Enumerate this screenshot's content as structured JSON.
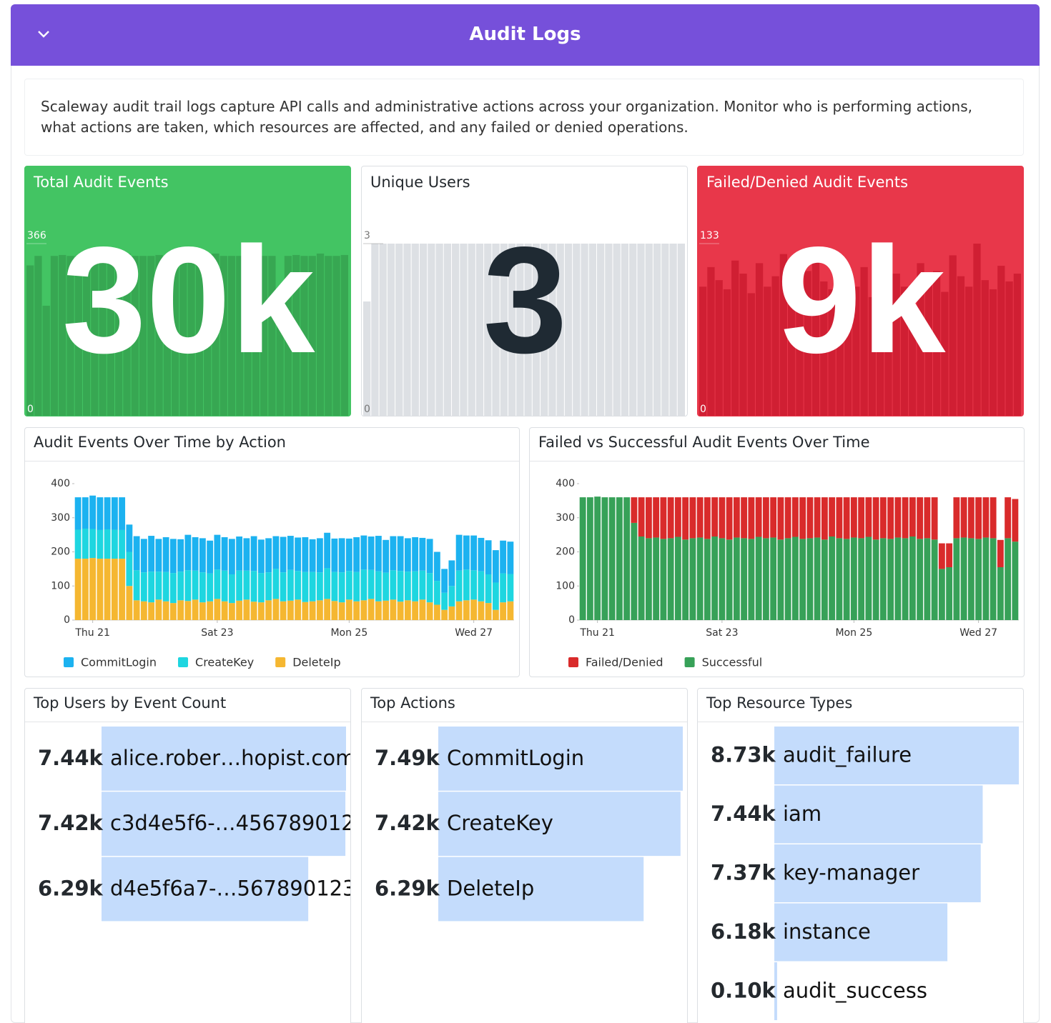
{
  "header": {
    "title": "Audit Logs"
  },
  "description": "Scaleway audit trail logs capture API calls and administrative actions across your organization. Monitor who is performing actions, what actions are taken, which resources are affected, and any failed or denied operations.",
  "stats": [
    {
      "title": "Total Audit Events",
      "value": "30k",
      "color": "#43c463",
      "bar_color": "#37a752",
      "text_color": "#ffffff",
      "sparkline": {
        "type": "bar",
        "ylim": [
          0,
          366
        ],
        "yticks": [
          0,
          366
        ],
        "values": [
          320,
          340,
          235,
          340,
          342,
          340,
          340,
          345,
          340,
          340,
          342,
          340,
          345,
          340,
          340,
          340,
          342,
          340,
          340,
          340,
          340,
          342,
          340,
          345,
          340,
          340,
          340,
          342,
          340,
          340,
          340,
          240,
          340,
          342,
          340,
          340,
          345,
          340,
          340,
          342
        ]
      }
    },
    {
      "title": "Unique Users",
      "value": "3",
      "color": "#ffffff",
      "bar_color": "#dde0e4",
      "text_color": "#1f2a33",
      "sparkline": {
        "type": "bar",
        "ylim": [
          0,
          3
        ],
        "yticks": [
          0,
          3
        ],
        "values": [
          2,
          3,
          3,
          3,
          3,
          3,
          3,
          3,
          3,
          3,
          3,
          3,
          3,
          3,
          3,
          3,
          3,
          3,
          3,
          3,
          3,
          3,
          3,
          3,
          3,
          3,
          3,
          3,
          3,
          3,
          3,
          3,
          3,
          3,
          3,
          3,
          3,
          3,
          3,
          3
        ]
      }
    },
    {
      "title": "Failed/Denied Audit Events",
      "value": "9k",
      "color": "#e8374a",
      "bar_color": "#d01f33",
      "text_color": "#ffffff",
      "sparkline": {
        "type": "bar",
        "ylim": [
          0,
          133
        ],
        "yticks": [
          0,
          133
        ],
        "values": [
          100,
          115,
          105,
          98,
          120,
          110,
          95,
          118,
          100,
          108,
          125,
          102,
          96,
          112,
          130,
          104,
          98,
          122,
          106,
          100,
          115,
          92,
          128,
          104,
          110,
          100,
          70,
          118,
          102,
          112,
          96,
          124,
          108,
          100,
          133,
          105,
          98,
          116,
          104,
          110
        ]
      }
    }
  ],
  "chart_data": [
    {
      "type": "stacked_bar",
      "title": "Audit Events Over Time by Action",
      "ylim": [
        0,
        400
      ],
      "yticks": [
        0,
        100,
        200,
        300,
        400
      ],
      "categories": [
        null,
        null,
        "Thu 21",
        null,
        null,
        null,
        null,
        null,
        null,
        null,
        null,
        null,
        null,
        null,
        null,
        null,
        null,
        null,
        null,
        "Sat 23",
        null,
        null,
        null,
        null,
        null,
        null,
        null,
        null,
        null,
        null,
        null,
        null,
        null,
        null,
        null,
        null,
        null,
        "Mon 25",
        null,
        null,
        null,
        null,
        null,
        null,
        null,
        null,
        null,
        null,
        null,
        null,
        null,
        null,
        null,
        null,
        "Wed 27",
        null,
        null,
        null,
        null,
        null
      ],
      "series": [
        {
          "name": "CommitLogin",
          "color": "#1cb2f0",
          "values": [
            95,
            92,
            98,
            96,
            94,
            95,
            96,
            80,
            100,
            98,
            105,
            96,
            102,
            100,
            95,
            104,
            98,
            100,
            96,
            102,
            98,
            104,
            100,
            95,
            102,
            98,
            100,
            96,
            104,
            100,
            98,
            102,
            96,
            100,
            104,
            98,
            100,
            95,
            102,
            100,
            98,
            104,
            96,
            100,
            102,
            98,
            100,
            96,
            100,
            85,
            70,
            75,
            105,
            100,
            102,
            98,
            100,
            95,
            96,
            95
          ]
        },
        {
          "name": "CreateKey",
          "color": "#1ed6e0",
          "values": [
            85,
            88,
            85,
            84,
            86,
            85,
            84,
            100,
            88,
            85,
            90,
            82,
            86,
            88,
            84,
            90,
            85,
            88,
            82,
            86,
            90,
            84,
            88,
            85,
            90,
            86,
            82,
            88,
            85,
            90,
            84,
            88,
            86,
            82,
            90,
            85,
            88,
            84,
            86,
            90,
            85,
            88,
            82,
            86,
            90,
            84,
            88,
            85,
            86,
            70,
            50,
            60,
            90,
            90,
            86,
            88,
            84,
            80,
            85,
            80
          ]
        },
        {
          "name": "DeleteIp",
          "color": "#f5b731",
          "values": [
            180,
            180,
            182,
            180,
            180,
            180,
            180,
            100,
            58,
            55,
            52,
            60,
            55,
            50,
            58,
            56,
            60,
            52,
            55,
            62,
            55,
            50,
            57,
            60,
            54,
            52,
            58,
            62,
            55,
            57,
            60,
            53,
            55,
            58,
            62,
            56,
            52,
            60,
            55,
            58,
            62,
            55,
            57,
            60,
            54,
            58,
            55,
            60,
            52,
            45,
            30,
            40,
            55,
            58,
            60,
            55,
            50,
            30,
            52,
            55
          ]
        }
      ]
    },
    {
      "type": "stacked_bar",
      "title": "Failed vs Successful Audit Events Over Time",
      "ylim": [
        0,
        400
      ],
      "yticks": [
        0,
        100,
        200,
        300,
        400
      ],
      "categories": [
        null,
        null,
        "Thu 21",
        null,
        null,
        null,
        null,
        null,
        null,
        null,
        null,
        null,
        null,
        null,
        null,
        null,
        null,
        null,
        null,
        "Sat 23",
        null,
        null,
        null,
        null,
        null,
        null,
        null,
        null,
        null,
        null,
        null,
        null,
        null,
        null,
        null,
        null,
        null,
        "Mon 25",
        null,
        null,
        null,
        null,
        null,
        null,
        null,
        null,
        null,
        null,
        null,
        null,
        null,
        null,
        null,
        null,
        "Wed 27",
        null,
        null,
        null,
        null,
        null
      ],
      "series": [
        {
          "name": "Failed/Denied",
          "color": "#d92b2b",
          "values": [
            0,
            0,
            0,
            0,
            0,
            0,
            0,
            75,
            115,
            120,
            118,
            122,
            120,
            116,
            124,
            120,
            118,
            122,
            115,
            120,
            124,
            118,
            120,
            122,
            116,
            120,
            118,
            124,
            120,
            116,
            122,
            120,
            118,
            124,
            115,
            120,
            122,
            118,
            120,
            116,
            124,
            120,
            122,
            118,
            120,
            115,
            122,
            120,
            124,
            75,
            70,
            120,
            118,
            120,
            122,
            118,
            120,
            80,
            120,
            125
          ]
        },
        {
          "name": "Successful",
          "color": "#37a158",
          "values": [
            360,
            360,
            362,
            360,
            360,
            360,
            360,
            285,
            245,
            240,
            242,
            238,
            240,
            244,
            236,
            240,
            242,
            238,
            245,
            240,
            236,
            242,
            240,
            238,
            244,
            240,
            242,
            236,
            240,
            244,
            238,
            240,
            242,
            236,
            245,
            240,
            238,
            242,
            240,
            244,
            236,
            240,
            238,
            242,
            240,
            245,
            238,
            240,
            236,
            150,
            155,
            240,
            242,
            240,
            238,
            242,
            240,
            155,
            240,
            230
          ]
        }
      ]
    },
    {
      "type": "hbar",
      "title": "Top Users by Event Count",
      "color": "#c4dcfc",
      "categories": [
        "alice.rober…hopist.com",
        "c3d4e5f6-…456789012",
        "d4e5f6a7-…567890123"
      ],
      "values": [
        7440,
        7420,
        6290
      ],
      "value_labels": [
        "7.44k",
        "7.42k",
        "6.29k"
      ]
    },
    {
      "type": "hbar",
      "title": "Top Actions",
      "color": "#c4dcfc",
      "categories": [
        "CommitLogin",
        "CreateKey",
        "DeleteIp"
      ],
      "values": [
        7490,
        7420,
        6290
      ],
      "value_labels": [
        "7.49k",
        "7.42k",
        "6.29k"
      ]
    },
    {
      "type": "hbar",
      "title": "Top Resource Types",
      "color": "#c4dcfc",
      "categories": [
        "audit_failure",
        "iam",
        "key-manager",
        "instance",
        "audit_success"
      ],
      "values": [
        8730,
        7440,
        7370,
        6180,
        100
      ],
      "value_labels": [
        "8.73k",
        "7.44k",
        "7.37k",
        "6.18k",
        "0.10k"
      ]
    }
  ]
}
